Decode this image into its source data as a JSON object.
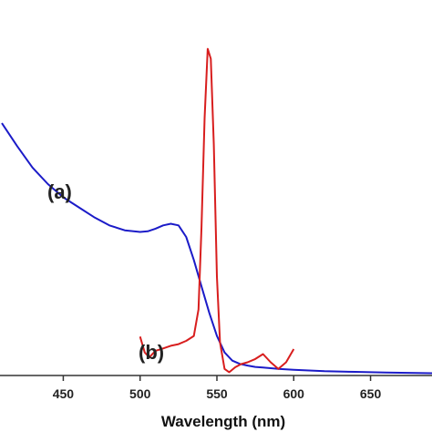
{
  "chart_data": {
    "type": "line",
    "xlabel": "Wavelength (nm)",
    "ylabel": "",
    "xlim": [
      410,
      690
    ],
    "ylim": [
      0,
      1
    ],
    "x_ticks": [
      450,
      500,
      550,
      600,
      650
    ],
    "y_axis_tick_labels_shown": false,
    "grid": false,
    "legend": "none",
    "annotations": [
      {
        "text": "(a)",
        "series": "absorption"
      },
      {
        "text": "(b)",
        "series": "emission"
      }
    ],
    "series": [
      {
        "id": "a",
        "color": "#1b1bc8",
        "x": [
          410,
          420,
          430,
          440,
          450,
          460,
          470,
          480,
          490,
          500,
          505,
          510,
          515,
          520,
          525,
          530,
          535,
          540,
          545,
          550,
          555,
          560,
          565,
          570,
          575,
          580,
          590,
          600,
          620,
          640,
          660,
          690
        ],
        "y": [
          0.765,
          0.695,
          0.63,
          0.58,
          0.54,
          0.51,
          0.48,
          0.455,
          0.44,
          0.435,
          0.437,
          0.445,
          0.455,
          0.46,
          0.455,
          0.42,
          0.35,
          0.27,
          0.19,
          0.12,
          0.07,
          0.045,
          0.035,
          0.03,
          0.026,
          0.024,
          0.02,
          0.017,
          0.013,
          0.011,
          0.009,
          0.007
        ]
      },
      {
        "id": "b",
        "color": "#d81e1e",
        "x": [
          500,
          503,
          506,
          510,
          515,
          520,
          525,
          530,
          535,
          538,
          540,
          542,
          544,
          546,
          548,
          550,
          552,
          555,
          558,
          562,
          566,
          570,
          575,
          580,
          585,
          590,
          595,
          600
        ],
        "y": [
          0.118,
          0.07,
          0.055,
          0.075,
          0.082,
          0.09,
          0.095,
          0.105,
          0.12,
          0.2,
          0.45,
          0.78,
          0.99,
          0.96,
          0.7,
          0.3,
          0.1,
          0.02,
          0.01,
          0.025,
          0.035,
          0.04,
          0.05,
          0.065,
          0.04,
          0.02,
          0.04,
          0.08
        ]
      }
    ]
  }
}
